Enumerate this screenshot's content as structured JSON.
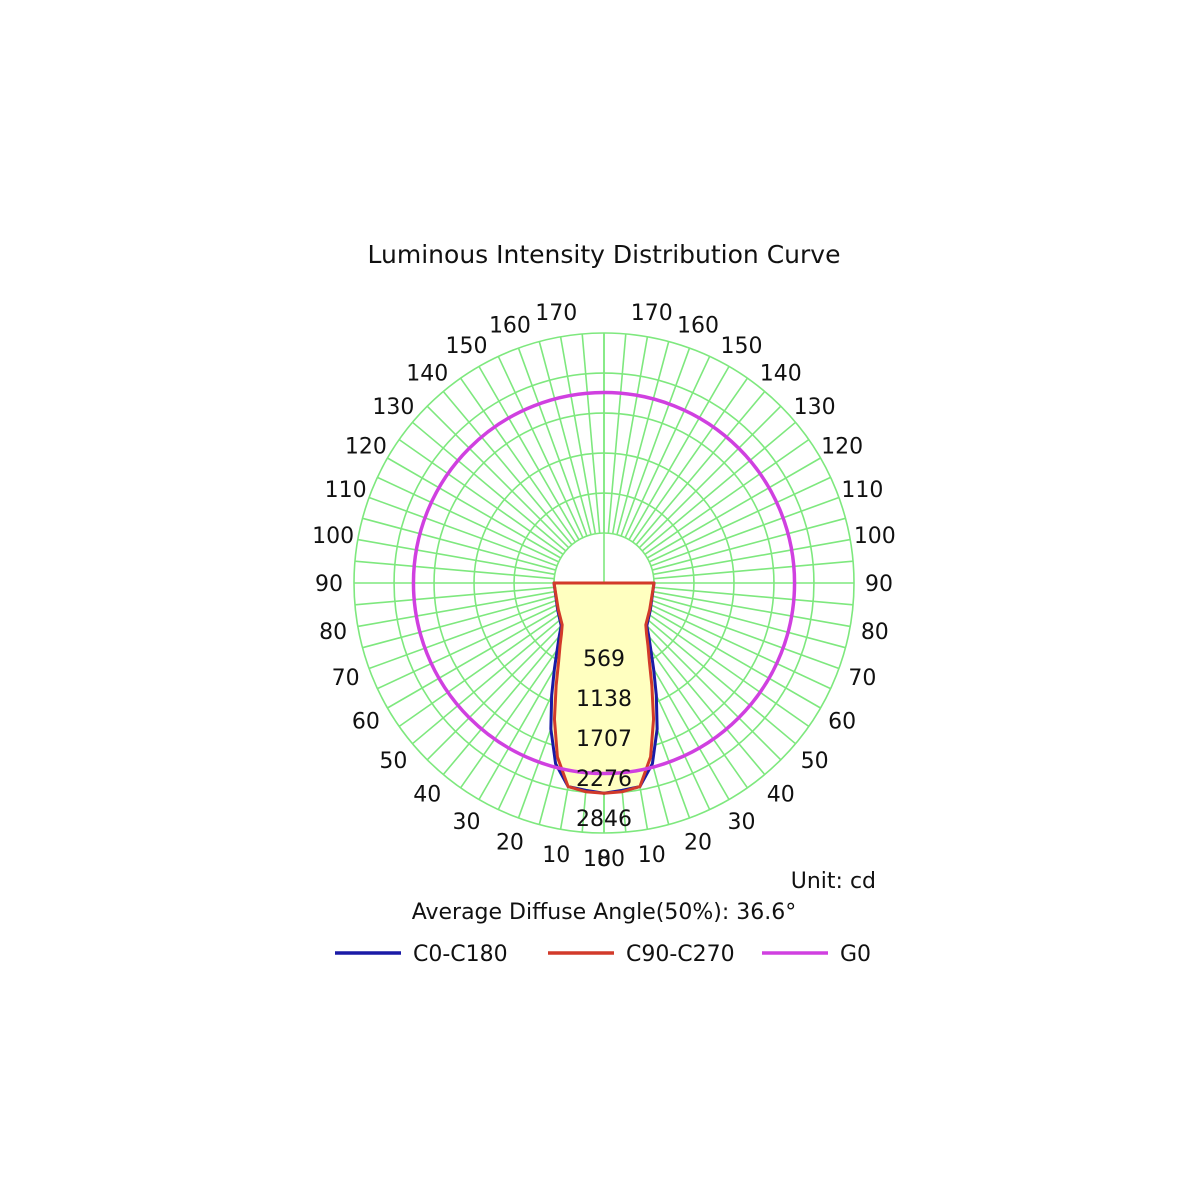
{
  "chart_data": {
    "type": "polar",
    "title": "Luminous Intensity Distribution Curve",
    "unit_label": "Unit: cd",
    "average_label": "Average Diffuse Angle(50%): 36.6°",
    "radial_max": 2846,
    "radial_ticks": [
      569,
      1138,
      1707,
      2276,
      2846
    ],
    "radial_tick_labels": [
      "569",
      "1138",
      "1707",
      "2276",
      "2846"
    ],
    "angle_ticks": [
      0,
      10,
      20,
      30,
      40,
      50,
      60,
      70,
      80,
      90,
      100,
      110,
      120,
      130,
      140,
      150,
      160,
      170,
      180
    ],
    "angle_tick_labels": [
      "0",
      "10",
      "20",
      "30",
      "40",
      "50",
      "60",
      "70",
      "80",
      "90",
      "100",
      "110",
      "120",
      "130",
      "140",
      "150",
      "160",
      "170",
      "180"
    ],
    "grid": true,
    "fill_color": "#ffffc0",
    "grid_color": "#7ee87e",
    "series": [
      {
        "name": "C0-C180",
        "color": "#1a1aa6",
        "angles": [
          0,
          5,
          10,
          15,
          20,
          25,
          30,
          35,
          40,
          45,
          60,
          90
        ],
        "values": [
          2280,
          2250,
          2230,
          1950,
          1500,
          1050,
          700,
          450,
          280,
          150,
          50,
          0
        ]
      },
      {
        "name": "C90-C270",
        "color": "#d23a2a",
        "angles": [
          0,
          5,
          10,
          15,
          20,
          25,
          30,
          35,
          40,
          45,
          60,
          90
        ],
        "values": [
          2280,
          2270,
          2230,
          1850,
          1350,
          900,
          580,
          380,
          230,
          130,
          40,
          0
        ]
      },
      {
        "name": "G0",
        "color": "#d040e0",
        "angles": [
          0,
          10,
          20,
          30,
          40,
          50,
          60,
          70,
          80,
          90,
          100,
          110,
          120,
          130,
          140,
          150,
          160,
          170,
          180
        ],
        "values": [
          2000,
          2000,
          2000,
          2000,
          2000,
          2000,
          2000,
          2000,
          2000,
          2000,
          2000,
          2000,
          2000,
          2000,
          2000,
          2000,
          2000,
          2000,
          2000
        ]
      }
    ],
    "legend": {
      "placement": "bottom",
      "items": [
        "C0-C180",
        "C90-C270",
        "G0"
      ]
    }
  }
}
